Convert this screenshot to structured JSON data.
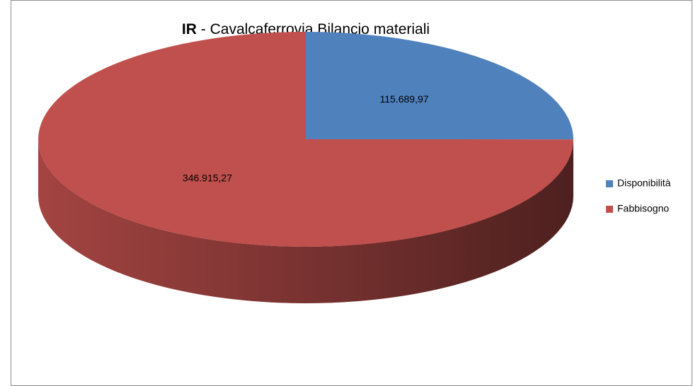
{
  "chart_data": {
    "type": "pie",
    "title_prefix": "IR",
    "title": "- Cavalcaferrovia Bilancio materiali",
    "categories": [
      "Disponibilità",
      "Fabbisogno"
    ],
    "values": [
      115689.97,
      346915.27
    ],
    "value_labels": [
      "115.689,97",
      "346.915,27"
    ],
    "colors": [
      "#4f81bd",
      "#c0504d"
    ],
    "legend": "right"
  }
}
